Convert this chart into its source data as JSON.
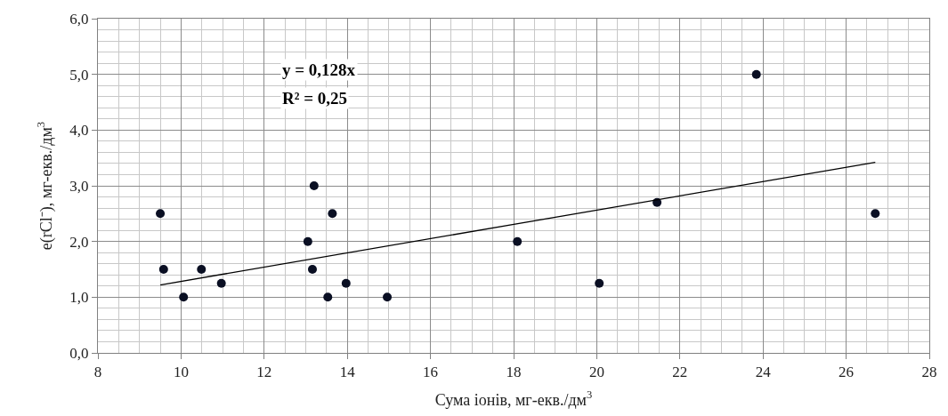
{
  "chart_data": {
    "type": "scatter",
    "xlabel": "Сума іонів, мг-екв./дм$^{3}$",
    "ylabel": "e(rCl⁻), мг-екв./дм$^{3}$",
    "annotations": [
      "y = 0,128x",
      "R² = 0,25"
    ],
    "series": [
      {
        "color": "#0a0f23",
        "marker": "circle",
        "x": [
          9.5,
          9.58,
          10.06,
          10.49,
          10.97,
          13.05,
          13.2,
          13.16,
          13.64,
          13.53,
          13.97,
          14.96,
          18.09,
          20.06,
          21.45,
          23.84,
          26.7
        ],
        "values": [
          2.5,
          1.5,
          1.0,
          1.5,
          1.25,
          2.0,
          3.0,
          1.5,
          2.5,
          1.0,
          1.25,
          1.0,
          2.0,
          1.25,
          2.7,
          5.0,
          2.5
        ]
      },
      {
        "type": "line",
        "color": "#000000",
        "marker": "none",
        "line_style": "solid",
        "x": [
          9.5,
          26.7
        ],
        "values": [
          1.22,
          3.42
        ]
      }
    ],
    "xlim": [
      8,
      28
    ],
    "xticks": [
      8,
      10,
      12,
      14,
      16,
      18,
      20,
      22,
      24,
      26,
      28
    ],
    "ylim": [
      0,
      6
    ],
    "yticks": [
      {
        "value": 0,
        "label": "0,0"
      },
      {
        "value": 1,
        "label": "1,0"
      },
      {
        "value": 2,
        "label": "2,0"
      },
      {
        "value": 3,
        "label": "3,0"
      },
      {
        "value": 4,
        "label": "4,0"
      },
      {
        "value": 5,
        "label": "5,0"
      },
      {
        "value": 6,
        "label": "6,0"
      }
    ],
    "grid": true,
    "legend": false
  }
}
